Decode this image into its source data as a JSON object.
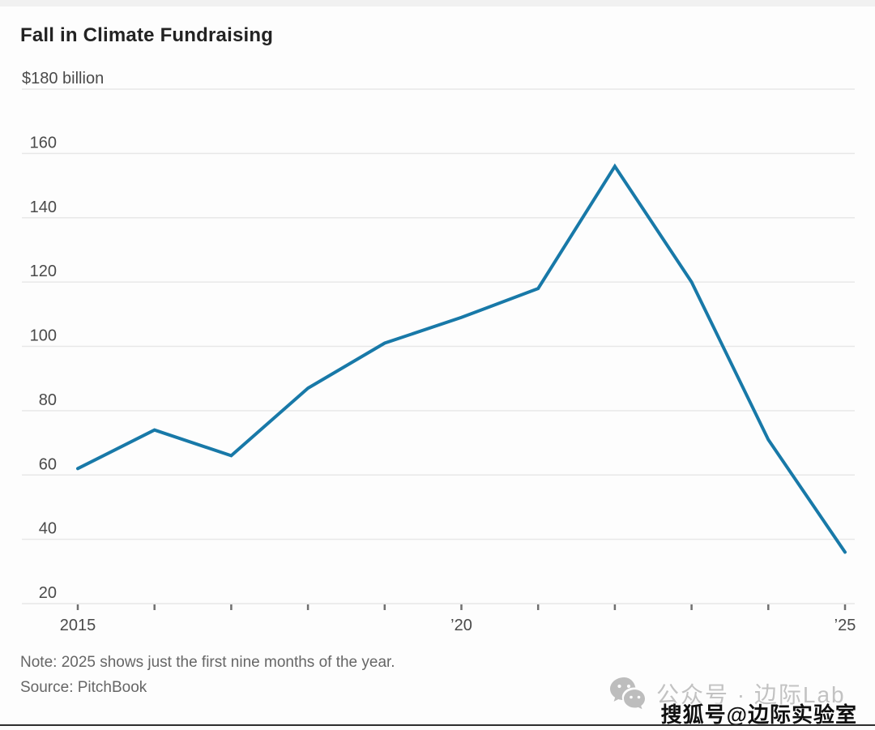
{
  "header": {
    "title": "Fall in Climate Fundraising"
  },
  "chart_data": {
    "type": "line",
    "title": "Fall in Climate Fundraising",
    "unit_label": "$180 billion",
    "x": [
      2015,
      2016,
      2017,
      2018,
      2019,
      2020,
      2021,
      2022,
      2023,
      2024,
      2025
    ],
    "values": [
      62,
      74,
      66,
      87,
      101,
      109,
      118,
      156,
      120,
      71,
      36
    ],
    "ylabel": "",
    "xlabel": "",
    "ylim": [
      20,
      180
    ],
    "ytick_step": 20,
    "xticks": [
      {
        "x": 2015,
        "label": "2015"
      },
      {
        "x": 2020,
        "label": "’20"
      },
      {
        "x": 2025,
        "label": "’25"
      }
    ],
    "grid": true,
    "legend_position": "none"
  },
  "footer": {
    "note": "Note: 2025 shows just the first nine months of the year.",
    "source": "Source: PitchBook"
  },
  "watermark": {
    "wechat_icon": "wechat-logo",
    "wechat_label": "公众号 · 边际Lab",
    "sohu_label": "搜狐号@边际实验室"
  },
  "colors": {
    "line": "#1879a8",
    "grid": "#e8e8e8",
    "axis_tick": "#707070",
    "tick_label": "#4a4a4a",
    "title_text": "#232323",
    "muted_text": "#666666",
    "watermark_gray": "#b8b8b8"
  }
}
